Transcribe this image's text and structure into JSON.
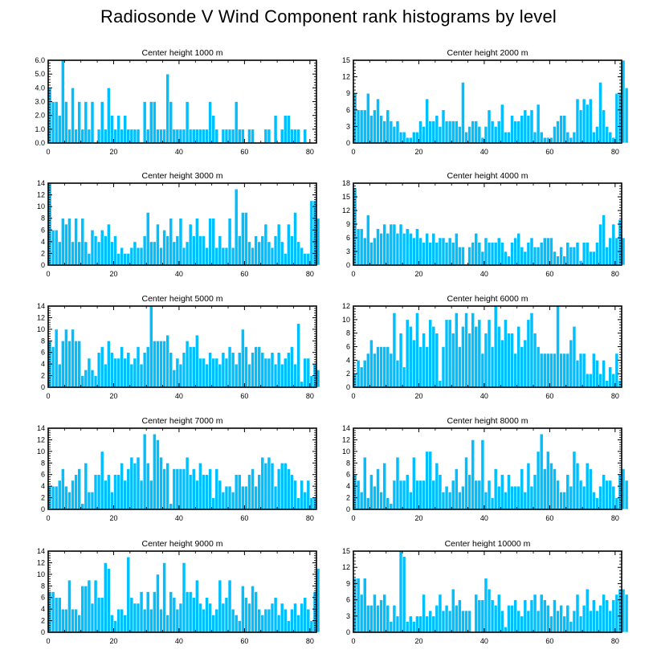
{
  "title": "Radiosonde V Wind Component rank histograms by level",
  "colors": {
    "bar": "#00bfff",
    "bar_edge": "#ffffff",
    "axis": "#000000",
    "text": "#000000"
  },
  "chart_data": [
    {
      "type": "bar",
      "title": "Center height 1000 m",
      "xlabel": "",
      "ylabel": "",
      "xlim": [
        0,
        82
      ],
      "ylim": [
        0,
        6
      ],
      "yticks": [
        0,
        1,
        2,
        3,
        4,
        5,
        6
      ],
      "ytick_labels": [
        "0.0",
        "1.0",
        "2.0",
        "3.0",
        "4.0",
        "5.0",
        "6.0"
      ],
      "xticks": [
        0,
        20,
        40,
        60,
        80
      ],
      "xtick_labels": [
        "0",
        "20",
        "40",
        "60",
        "80"
      ],
      "values": [
        4,
        3,
        3,
        2,
        6,
        3,
        1,
        4,
        1,
        3,
        1,
        3,
        1,
        3,
        0,
        1,
        3,
        1,
        4,
        2,
        1,
        2,
        1,
        2,
        1,
        1,
        1,
        1,
        0,
        3,
        1,
        3,
        3,
        1,
        1,
        1,
        5,
        3,
        1,
        1,
        1,
        1,
        3,
        1,
        1,
        1,
        1,
        1,
        1,
        3,
        2,
        1,
        0,
        1,
        1,
        1,
        1,
        3,
        1,
        1,
        0,
        1,
        1,
        0,
        0,
        0,
        1,
        1,
        0,
        2,
        0,
        1,
        2,
        2,
        1,
        1,
        1,
        0,
        1,
        0,
        0
      ]
    },
    {
      "type": "bar",
      "title": "Center height 2000 m",
      "xlabel": "",
      "ylabel": "",
      "xlim": [
        0,
        82
      ],
      "ylim": [
        0,
        15
      ],
      "yticks": [
        0,
        3,
        6,
        9,
        12,
        15
      ],
      "ytick_labels": [
        "0",
        "3",
        "6",
        "9",
        "12",
        "15"
      ],
      "xticks": [
        0,
        20,
        40,
        60,
        80
      ],
      "xtick_labels": [
        "0",
        "20",
        "40",
        "60",
        "80"
      ],
      "values": [
        9,
        6,
        6,
        6,
        9,
        5,
        6,
        8,
        5,
        4,
        6,
        4,
        3,
        4,
        2,
        2,
        1,
        1,
        2,
        2,
        4,
        3,
        8,
        4,
        4,
        5,
        3,
        6,
        4,
        4,
        4,
        4,
        3,
        11,
        2,
        3,
        4,
        4,
        3,
        1,
        3,
        6,
        4,
        3,
        4,
        7,
        2,
        2,
        5,
        4,
        4,
        5,
        6,
        5,
        6,
        2,
        7,
        2,
        1,
        1,
        1,
        3,
        4,
        5,
        5,
        2,
        1,
        2,
        8,
        6,
        8,
        7,
        8,
        2,
        3,
        11,
        6,
        3,
        2,
        1,
        9,
        9,
        15,
        10
      ]
    },
    {
      "type": "bar",
      "title": "Center height 3000 m",
      "xlabel": "",
      "ylabel": "",
      "xlim": [
        0,
        82
      ],
      "ylim": [
        0,
        14
      ],
      "yticks": [
        0,
        2,
        4,
        6,
        8,
        10,
        12,
        14
      ],
      "ytick_labels": [
        "0",
        "2",
        "4",
        "6",
        "8",
        "10",
        "12",
        "14"
      ],
      "xticks": [
        0,
        20,
        40,
        60,
        80
      ],
      "xtick_labels": [
        "0",
        "20",
        "40",
        "60",
        "80"
      ],
      "values": [
        14,
        6,
        6,
        4,
        8,
        7,
        8,
        4,
        8,
        4,
        8,
        4,
        2,
        6,
        5,
        4,
        6,
        5,
        7,
        4,
        5,
        2,
        3,
        2,
        2,
        3,
        4,
        3,
        3,
        5,
        9,
        4,
        4,
        7,
        3,
        6,
        5,
        8,
        4,
        5,
        8,
        3,
        4,
        7,
        5,
        8,
        5,
        5,
        3,
        8,
        8,
        3,
        5,
        3,
        3,
        8,
        3,
        13,
        5,
        9,
        9,
        4,
        3,
        5,
        4,
        5,
        7,
        4,
        3,
        5,
        7,
        4,
        2,
        7,
        5,
        9,
        4,
        3,
        2,
        2,
        11,
        11,
        8
      ]
    },
    {
      "type": "bar",
      "title": "Center height 4000 m",
      "xlabel": "",
      "ylabel": "",
      "xlim": [
        0,
        82
      ],
      "ylim": [
        0,
        18
      ],
      "yticks": [
        0,
        3,
        6,
        9,
        12,
        15,
        18
      ],
      "ytick_labels": [
        "0",
        "3",
        "6",
        "9",
        "12",
        "15",
        "18"
      ],
      "xticks": [
        0,
        20,
        40,
        60,
        80
      ],
      "xtick_labels": [
        "0",
        "20",
        "40",
        "60",
        "80"
      ],
      "values": [
        17,
        8,
        8,
        6,
        11,
        5,
        6,
        8,
        7,
        9,
        7,
        9,
        9,
        7,
        9,
        7,
        8,
        7,
        6,
        8,
        6,
        5,
        7,
        5,
        7,
        5,
        6,
        6,
        5,
        6,
        5,
        7,
        4,
        4,
        0,
        4,
        5,
        7,
        5,
        3,
        6,
        5,
        5,
        5,
        6,
        5,
        3,
        2,
        5,
        6,
        7,
        4,
        3,
        5,
        6,
        4,
        4,
        5,
        6,
        6,
        6,
        3,
        2,
        4,
        2,
        5,
        4,
        4,
        5,
        1,
        5,
        5,
        3,
        3,
        5,
        9,
        11,
        4,
        6,
        9,
        6,
        10,
        6
      ]
    },
    {
      "type": "bar",
      "title": "Center height 5000 m",
      "xlabel": "",
      "ylabel": "",
      "xlim": [
        0,
        82
      ],
      "ylim": [
        0,
        14
      ],
      "yticks": [
        0,
        2,
        4,
        6,
        8,
        10,
        12,
        14
      ],
      "ytick_labels": [
        "0",
        "2",
        "4",
        "6",
        "8",
        "10",
        "12",
        "14"
      ],
      "xticks": [
        0,
        20,
        40,
        60,
        80
      ],
      "xtick_labels": [
        "0",
        "20",
        "40",
        "60",
        "80"
      ],
      "values": [
        8,
        7,
        10,
        4,
        8,
        10,
        8,
        10,
        8,
        8,
        2,
        3,
        5,
        3,
        2,
        6,
        7,
        4,
        8,
        6,
        5,
        5,
        7,
        5,
        6,
        4,
        5,
        7,
        4,
        6,
        7,
        14,
        8,
        8,
        8,
        8,
        9,
        6,
        3,
        5,
        4,
        6,
        8,
        7,
        7,
        9,
        5,
        5,
        4,
        6,
        5,
        5,
        4,
        6,
        5,
        7,
        6,
        4,
        6,
        10,
        7,
        4,
        6,
        7,
        7,
        6,
        5,
        5,
        6,
        4,
        6,
        4,
        5,
        6,
        7,
        4,
        11,
        1,
        5,
        5,
        2,
        4,
        3
      ]
    },
    {
      "type": "bar",
      "title": "Center height 6000 m",
      "xlabel": "",
      "ylabel": "",
      "xlim": [
        0,
        82
      ],
      "ylim": [
        0,
        12
      ],
      "yticks": [
        0,
        2,
        4,
        6,
        8,
        10,
        12
      ],
      "ytick_labels": [
        "0",
        "2",
        "4",
        "6",
        "8",
        "10",
        "12"
      ],
      "xticks": [
        0,
        20,
        40,
        60,
        80
      ],
      "xtick_labels": [
        "0",
        "20",
        "40",
        "60",
        "80"
      ],
      "values": [
        2,
        4,
        3,
        4,
        5,
        7,
        5,
        6,
        6,
        6,
        6,
        5,
        11,
        4,
        8,
        3,
        10,
        9,
        7,
        11,
        6,
        8,
        6,
        10,
        9,
        8,
        1,
        6,
        10,
        10,
        8,
        11,
        6,
        9,
        11,
        8,
        11,
        9,
        10,
        5,
        8,
        10,
        6,
        12,
        9,
        7,
        10,
        8,
        8,
        5,
        9,
        6,
        7,
        10,
        11,
        8,
        6,
        5,
        5,
        5,
        5,
        5,
        12,
        5,
        5,
        5,
        7,
        9,
        4,
        5,
        5,
        2,
        2,
        5,
        4,
        2,
        4,
        1,
        3,
        2,
        5,
        1
      ]
    },
    {
      "type": "bar",
      "title": "Center height 7000 m",
      "xlabel": "",
      "ylabel": "",
      "xlim": [
        0,
        82
      ],
      "ylim": [
        0,
        14
      ],
      "yticks": [
        0,
        2,
        4,
        6,
        8,
        10,
        12,
        14
      ],
      "ytick_labels": [
        "0",
        "2",
        "4",
        "6",
        "8",
        "10",
        "12",
        "14"
      ],
      "xticks": [
        0,
        20,
        40,
        60,
        80
      ],
      "xtick_labels": [
        "0",
        "20",
        "40",
        "60",
        "80"
      ],
      "values": [
        4,
        4,
        4,
        5,
        7,
        4,
        3,
        5,
        6,
        7,
        1,
        8,
        3,
        3,
        6,
        6,
        10,
        5,
        6,
        3,
        6,
        6,
        8,
        5,
        7,
        9,
        8,
        9,
        5,
        13,
        8,
        5,
        13,
        12,
        9,
        7,
        8,
        1,
        7,
        7,
        7,
        7,
        9,
        6,
        7,
        5,
        8,
        6,
        6,
        7,
        2,
        7,
        5,
        3,
        4,
        4,
        3,
        6,
        6,
        4,
        4,
        6,
        7,
        4,
        6,
        9,
        8,
        9,
        8,
        4,
        7,
        8,
        8,
        7,
        6,
        5,
        2,
        5,
        3,
        5,
        2,
        2
      ]
    },
    {
      "type": "bar",
      "title": "Center height 8000 m",
      "xlabel": "",
      "ylabel": "",
      "xlim": [
        0,
        82
      ],
      "ylim": [
        0,
        14
      ],
      "yticks": [
        0,
        2,
        4,
        6,
        8,
        10,
        12,
        14
      ],
      "ytick_labels": [
        "0",
        "2",
        "4",
        "6",
        "8",
        "10",
        "12",
        "14"
      ],
      "xticks": [
        0,
        20,
        40,
        60,
        80
      ],
      "xtick_labels": [
        "0",
        "20",
        "40",
        "60",
        "80"
      ],
      "values": [
        6,
        5,
        3,
        9,
        2,
        6,
        4,
        7,
        3,
        8,
        2,
        1,
        5,
        9,
        5,
        5,
        6,
        3,
        9,
        5,
        5,
        5,
        10,
        10,
        5,
        8,
        6,
        3,
        4,
        3,
        5,
        7,
        3,
        4,
        9,
        6,
        12,
        5,
        5,
        12,
        3,
        5,
        2,
        7,
        4,
        6,
        3,
        6,
        4,
        4,
        4,
        7,
        3,
        8,
        4,
        6,
        10,
        13,
        7,
        10,
        8,
        7,
        5,
        3,
        3,
        6,
        4,
        10,
        8,
        5,
        4,
        8,
        7,
        3,
        2,
        4,
        6,
        5,
        5,
        4,
        2,
        6,
        7,
        5
      ]
    },
    {
      "type": "bar",
      "title": "Center height 9000 m",
      "xlabel": "",
      "ylabel": "",
      "xlim": [
        0,
        82
      ],
      "ylim": [
        0,
        14
      ],
      "yticks": [
        0,
        2,
        4,
        6,
        8,
        10,
        12,
        14
      ],
      "ytick_labels": [
        "0",
        "2",
        "4",
        "6",
        "8",
        "10",
        "12",
        "14"
      ],
      "xticks": [
        0,
        20,
        40,
        60,
        80
      ],
      "xtick_labels": [
        "0",
        "20",
        "40",
        "60",
        "80"
      ],
      "values": [
        7,
        7,
        6,
        6,
        4,
        4,
        9,
        4,
        4,
        3,
        8,
        8,
        9,
        5,
        9,
        6,
        6,
        12,
        11,
        3,
        2,
        4,
        4,
        3,
        13,
        6,
        5,
        5,
        7,
        4,
        7,
        4,
        7,
        10,
        4,
        12,
        3,
        7,
        6,
        4,
        5,
        12,
        7,
        7,
        6,
        9,
        5,
        4,
        6,
        5,
        3,
        4,
        9,
        5,
        6,
        9,
        4,
        3,
        2,
        8,
        6,
        5,
        8,
        7,
        4,
        3,
        4,
        4,
        5,
        6,
        3,
        5,
        4,
        2,
        4,
        5,
        3,
        5,
        6,
        4,
        2,
        7,
        11
      ]
    },
    {
      "type": "bar",
      "title": "Center height 10000 m",
      "xlabel": "",
      "ylabel": "",
      "xlim": [
        0,
        82
      ],
      "ylim": [
        0,
        15
      ],
      "yticks": [
        0,
        3,
        6,
        9,
        12,
        15
      ],
      "ytick_labels": [
        "0",
        "3",
        "6",
        "9",
        "12",
        "15"
      ],
      "xticks": [
        0,
        20,
        40,
        60,
        80
      ],
      "xtick_labels": [
        "0",
        "20",
        "40",
        "60",
        "80"
      ],
      "values": [
        10,
        10,
        7,
        10,
        5,
        5,
        7,
        5,
        6,
        7,
        5,
        2,
        5,
        3,
        15,
        14,
        2,
        3,
        2,
        3,
        3,
        7,
        3,
        4,
        3,
        5,
        7,
        4,
        5,
        4,
        8,
        5,
        6,
        4,
        4,
        4,
        0,
        7,
        6,
        6,
        10,
        8,
        6,
        5,
        7,
        4,
        1,
        5,
        5,
        6,
        4,
        3,
        6,
        4,
        6,
        7,
        4,
        7,
        6,
        5,
        3,
        6,
        4,
        5,
        3,
        5,
        2,
        4,
        7,
        3,
        5,
        8,
        4,
        6,
        4,
        5,
        7,
        6,
        4,
        6,
        7,
        8,
        8,
        7
      ]
    }
  ]
}
